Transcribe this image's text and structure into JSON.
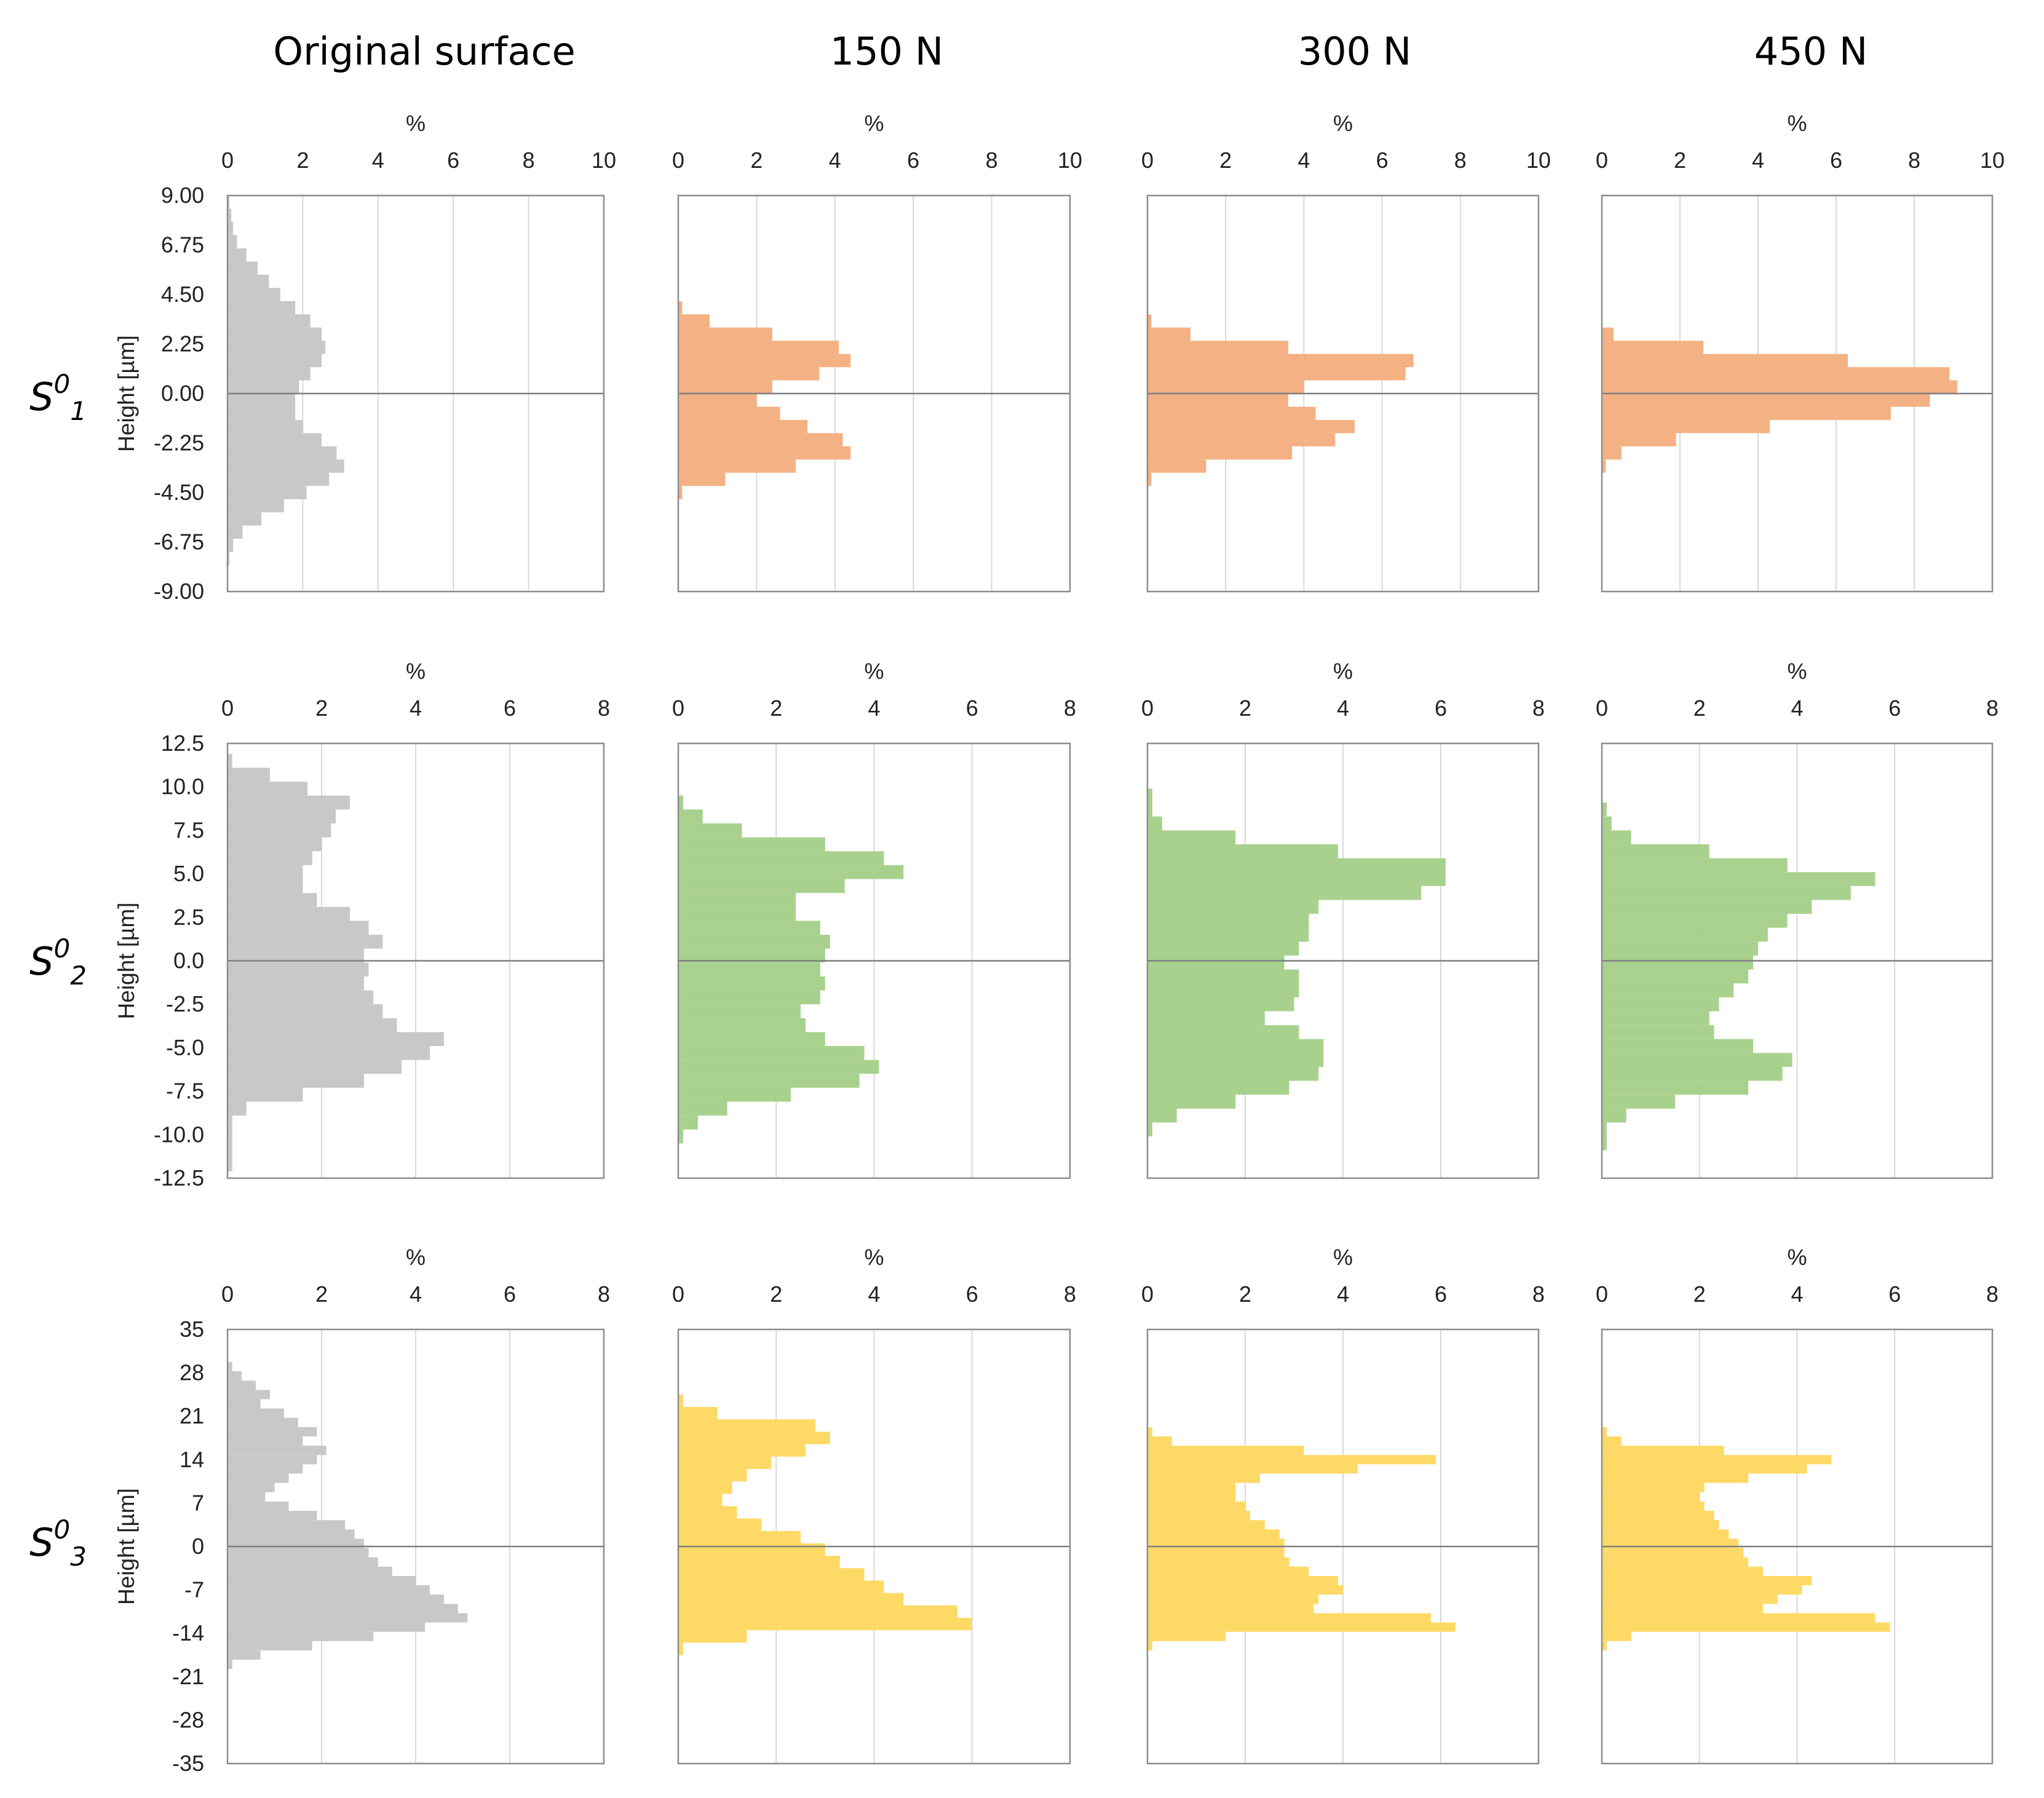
{
  "colors": {
    "original": "#c8c8c8",
    "row1": "#f4b183",
    "row2": "#a9d18e",
    "row3": "#ffd966",
    "frame": "#8c8c8c",
    "grid": "#d9d9d9",
    "zero_line": "#7f7f7f"
  },
  "column_titles": [
    "Original surface",
    "150 N",
    "300 N",
    "450 N"
  ],
  "row_labels": [
    {
      "base": "S",
      "sup": "0",
      "sub": "1"
    },
    {
      "base": "S",
      "sup": "0",
      "sub": "2"
    },
    {
      "base": "S",
      "sup": "0",
      "sub": "3"
    }
  ],
  "chart_data": [
    {
      "type": "bar",
      "orientation": "horizontal",
      "row": 0,
      "column": "Original surface",
      "xlabel": "%",
      "ylabel": "Height [µm]",
      "xlim": [
        0,
        10
      ],
      "ylim": [
        -9,
        9
      ],
      "x_ticks": [
        "0",
        "2",
        "4",
        "6",
        "8",
        "10"
      ],
      "y_ticks": [
        "9.00",
        "6.75",
        "4.50",
        "2.25",
        "0.00",
        "-2.25",
        "-4.50",
        "-6.75",
        "-9.00"
      ],
      "bins": [
        [
          8.7,
          0.05
        ],
        [
          8.1,
          0.1
        ],
        [
          7.5,
          0.15
        ],
        [
          6.9,
          0.25
        ],
        [
          6.3,
          0.5
        ],
        [
          5.7,
          0.8
        ],
        [
          5.1,
          1.1
        ],
        [
          4.5,
          1.4
        ],
        [
          3.9,
          1.8
        ],
        [
          3.3,
          2.2
        ],
        [
          2.7,
          2.5
        ],
        [
          2.1,
          2.6
        ],
        [
          1.5,
          2.5
        ],
        [
          0.9,
          2.2
        ],
        [
          0.3,
          1.9
        ],
        [
          -0.3,
          1.8
        ],
        [
          -0.9,
          1.8
        ],
        [
          -1.5,
          2.0
        ],
        [
          -2.1,
          2.5
        ],
        [
          -2.7,
          2.9
        ],
        [
          -3.3,
          3.1
        ],
        [
          -3.9,
          2.7
        ],
        [
          -4.5,
          2.1
        ],
        [
          -5.1,
          1.5
        ],
        [
          -5.7,
          0.9
        ],
        [
          -6.3,
          0.4
        ],
        [
          -6.9,
          0.15
        ],
        [
          -7.5,
          0.05
        ]
      ]
    },
    {
      "type": "bar",
      "orientation": "horizontal",
      "row": 0,
      "column": "150 N",
      "xlabel": "%",
      "ylabel": "Height [µm]",
      "xlim": [
        0,
        10
      ],
      "ylim": [
        -9,
        9
      ],
      "x_ticks": [
        "0",
        "2",
        "4",
        "6",
        "8",
        "10"
      ],
      "y_ticks": [],
      "bins": [
        [
          3.9,
          0.1
        ],
        [
          3.3,
          0.8
        ],
        [
          2.7,
          2.4
        ],
        [
          2.1,
          4.1
        ],
        [
          1.5,
          4.4
        ],
        [
          0.9,
          3.6
        ],
        [
          0.3,
          2.4
        ],
        [
          -0.3,
          2.0
        ],
        [
          -0.9,
          2.6
        ],
        [
          -1.5,
          3.3
        ],
        [
          -2.1,
          4.2
        ],
        [
          -2.7,
          4.4
        ],
        [
          -3.3,
          3.0
        ],
        [
          -3.9,
          1.2
        ],
        [
          -4.5,
          0.1
        ]
      ]
    },
    {
      "type": "bar",
      "orientation": "horizontal",
      "row": 0,
      "column": "300 N",
      "xlabel": "%",
      "ylabel": "Height [µm]",
      "xlim": [
        0,
        10
      ],
      "ylim": [
        -9,
        9
      ],
      "x_ticks": [
        "0",
        "2",
        "4",
        "6",
        "8",
        "10"
      ],
      "y_ticks": [],
      "bins": [
        [
          3.3,
          0.1
        ],
        [
          2.7,
          1.1
        ],
        [
          2.1,
          3.6
        ],
        [
          1.5,
          6.8
        ],
        [
          0.9,
          6.6
        ],
        [
          0.3,
          4.0
        ],
        [
          -0.3,
          3.6
        ],
        [
          -0.9,
          4.3
        ],
        [
          -1.5,
          5.3
        ],
        [
          -2.1,
          4.8
        ],
        [
          -2.7,
          3.7
        ],
        [
          -3.3,
          1.5
        ],
        [
          -3.9,
          0.1
        ]
      ]
    },
    {
      "type": "bar",
      "orientation": "horizontal",
      "row": 0,
      "column": "450 N",
      "xlabel": "%",
      "ylabel": "Height [µm]",
      "xlim": [
        0,
        10
      ],
      "ylim": [
        -9,
        9
      ],
      "x_ticks": [
        "0",
        "2",
        "4",
        "6",
        "8",
        "10"
      ],
      "y_ticks": [],
      "bins": [
        [
          2.7,
          0.3
        ],
        [
          2.1,
          2.6
        ],
        [
          1.5,
          6.3
        ],
        [
          0.9,
          8.9
        ],
        [
          0.3,
          9.1
        ],
        [
          -0.3,
          8.4
        ],
        [
          -0.9,
          7.4
        ],
        [
          -1.5,
          4.3
        ],
        [
          -2.1,
          1.9
        ],
        [
          -2.7,
          0.5
        ],
        [
          -3.3,
          0.1
        ]
      ]
    },
    {
      "type": "bar",
      "orientation": "horizontal",
      "row": 1,
      "column": "Original surface",
      "xlabel": "%",
      "ylabel": "Height [µm]",
      "xlim": [
        0,
        8
      ],
      "ylim": [
        -12.5,
        12.5
      ],
      "x_ticks": [
        "0",
        "2",
        "4",
        "6",
        "8"
      ],
      "y_ticks": [
        "12.5",
        "10.0",
        "7.5",
        "5.0",
        "2.5",
        "0.0",
        "-2.5",
        "-5.0",
        "-7.5",
        "-10.0",
        "-12.5"
      ],
      "bins": [
        [
          11.5,
          0.1
        ],
        [
          10.7,
          0.9
        ],
        [
          9.9,
          1.7
        ],
        [
          9.1,
          2.6
        ],
        [
          8.3,
          2.3
        ],
        [
          7.5,
          2.2
        ],
        [
          6.7,
          2.0
        ],
        [
          5.9,
          1.8
        ],
        [
          5.1,
          1.6
        ],
        [
          4.3,
          1.6
        ],
        [
          3.5,
          1.9
        ],
        [
          2.7,
          2.6
        ],
        [
          1.9,
          3.0
        ],
        [
          1.1,
          3.3
        ],
        [
          0.3,
          2.9
        ],
        [
          -0.5,
          3.0
        ],
        [
          -1.3,
          2.9
        ],
        [
          -2.1,
          3.1
        ],
        [
          -2.9,
          3.3
        ],
        [
          -3.7,
          3.6
        ],
        [
          -4.5,
          4.6
        ],
        [
          -5.3,
          4.3
        ],
        [
          -6.1,
          3.7
        ],
        [
          -6.9,
          2.9
        ],
        [
          -7.7,
          1.6
        ],
        [
          -8.5,
          0.4
        ],
        [
          -9.3,
          0.1
        ],
        [
          -10.1,
          0.1
        ],
        [
          -10.9,
          0.1
        ],
        [
          -11.7,
          0.1
        ]
      ]
    },
    {
      "type": "bar",
      "orientation": "horizontal",
      "row": 1,
      "column": "150 N",
      "xlabel": "%",
      "ylabel": "Height [µm]",
      "xlim": [
        0,
        8
      ],
      "ylim": [
        -12.5,
        12.5
      ],
      "x_ticks": [
        "0",
        "2",
        "4",
        "6",
        "8"
      ],
      "y_ticks": [],
      "bins": [
        [
          9.1,
          0.1
        ],
        [
          8.3,
          0.5
        ],
        [
          7.5,
          1.3
        ],
        [
          6.7,
          3.0
        ],
        [
          5.9,
          4.2
        ],
        [
          5.1,
          4.6
        ],
        [
          4.3,
          3.4
        ],
        [
          3.5,
          2.4
        ],
        [
          2.7,
          2.4
        ],
        [
          1.9,
          2.9
        ],
        [
          1.1,
          3.1
        ],
        [
          0.3,
          3.0
        ],
        [
          -0.5,
          2.9
        ],
        [
          -1.3,
          3.0
        ],
        [
          -2.1,
          2.9
        ],
        [
          -2.9,
          2.5
        ],
        [
          -3.7,
          2.6
        ],
        [
          -4.5,
          3.0
        ],
        [
          -5.3,
          3.8
        ],
        [
          -6.1,
          4.1
        ],
        [
          -6.9,
          3.7
        ],
        [
          -7.7,
          2.3
        ],
        [
          -8.5,
          1.0
        ],
        [
          -9.3,
          0.4
        ],
        [
          -10.1,
          0.1
        ]
      ]
    },
    {
      "type": "bar",
      "orientation": "horizontal",
      "row": 1,
      "column": "300 N",
      "xlabel": "%",
      "ylabel": "Height [µm]",
      "xlim": [
        0,
        8
      ],
      "ylim": [
        -12.5,
        12.5
      ],
      "x_ticks": [
        "0",
        "2",
        "4",
        "6",
        "8"
      ],
      "y_ticks": [],
      "bins": [
        [
          9.1,
          0.1
        ],
        [
          7.5,
          0.3
        ],
        [
          6.7,
          1.8
        ],
        [
          5.9,
          3.9
        ],
        [
          5.1,
          6.1
        ],
        [
          4.3,
          5.6
        ],
        [
          3.5,
          3.5
        ],
        [
          2.7,
          3.3
        ],
        [
          1.9,
          3.3
        ],
        [
          1.1,
          3.1
        ],
        [
          0.3,
          2.7
        ],
        [
          -0.5,
          2.8
        ],
        [
          -1.3,
          3.1
        ],
        [
          -2.1,
          3.0
        ],
        [
          -2.9,
          2.4
        ],
        [
          -3.7,
          2.3
        ],
        [
          -4.5,
          3.1
        ],
        [
          -5.3,
          3.6
        ],
        [
          -6.1,
          3.5
        ],
        [
          -6.9,
          2.9
        ],
        [
          -7.7,
          1.8
        ],
        [
          -8.5,
          0.6
        ],
        [
          -9.3,
          0.1
        ]
      ]
    },
    {
      "type": "bar",
      "orientation": "horizontal",
      "row": 1,
      "column": "450 N",
      "xlabel": "%",
      "ylabel": "Height [µm]",
      "xlim": [
        0,
        8
      ],
      "ylim": [
        -12.5,
        12.5
      ],
      "x_ticks": [
        "0",
        "2",
        "4",
        "6",
        "8"
      ],
      "y_ticks": [],
      "bins": [
        [
          8.7,
          0.1
        ],
        [
          7.9,
          0.2
        ],
        [
          7.1,
          0.6
        ],
        [
          6.3,
          2.2
        ],
        [
          5.5,
          3.8
        ],
        [
          4.7,
          5.6
        ],
        [
          3.9,
          5.1
        ],
        [
          3.1,
          4.3
        ],
        [
          2.3,
          3.8
        ],
        [
          1.5,
          3.4
        ],
        [
          0.7,
          3.2
        ],
        [
          -0.1,
          3.1
        ],
        [
          -0.9,
          3.0
        ],
        [
          -1.7,
          2.7
        ],
        [
          -2.5,
          2.4
        ],
        [
          -3.3,
          2.2
        ],
        [
          -4.1,
          2.3
        ],
        [
          -4.9,
          3.1
        ],
        [
          -5.7,
          3.9
        ],
        [
          -6.5,
          3.7
        ],
        [
          -7.3,
          3.0
        ],
        [
          -8.1,
          1.5
        ],
        [
          -8.9,
          0.5
        ],
        [
          -9.7,
          0.1
        ],
        [
          -10.5,
          0.1
        ]
      ]
    },
    {
      "type": "bar",
      "orientation": "horizontal",
      "row": 2,
      "column": "Original surface",
      "xlabel": "%",
      "ylabel": "Height [µm]",
      "xlim": [
        0,
        8
      ],
      "ylim": [
        -35,
        35
      ],
      "x_ticks": [
        "0",
        "2",
        "4",
        "6",
        "8"
      ],
      "y_ticks": [
        "35",
        "28",
        "21",
        "14",
        "7",
        "0",
        "-7",
        "-14",
        "-21",
        "-28",
        "-35"
      ],
      "bins": [
        [
          29.0,
          0.1
        ],
        [
          27.5,
          0.3
        ],
        [
          26.0,
          0.6
        ],
        [
          24.5,
          0.9
        ],
        [
          23.0,
          0.7
        ],
        [
          21.5,
          1.2
        ],
        [
          20.0,
          1.5
        ],
        [
          18.5,
          1.9
        ],
        [
          17.0,
          1.6
        ],
        [
          15.5,
          2.1
        ],
        [
          14.0,
          1.9
        ],
        [
          12.5,
          1.6
        ],
        [
          11.0,
          1.3
        ],
        [
          9.5,
          1.0
        ],
        [
          8.0,
          0.8
        ],
        [
          6.5,
          1.3
        ],
        [
          5.0,
          1.9
        ],
        [
          3.5,
          2.5
        ],
        [
          2.0,
          2.7
        ],
        [
          0.5,
          2.9
        ],
        [
          -1.0,
          3.0
        ],
        [
          -2.5,
          3.2
        ],
        [
          -4.0,
          3.5
        ],
        [
          -5.5,
          4.0
        ],
        [
          -7.0,
          4.3
        ],
        [
          -8.5,
          4.6
        ],
        [
          -10.0,
          4.9
        ],
        [
          -11.5,
          5.1
        ],
        [
          -13.0,
          4.2
        ],
        [
          -14.5,
          3.1
        ],
        [
          -16.0,
          1.8
        ],
        [
          -17.5,
          0.7
        ],
        [
          -19.0,
          0.1
        ]
      ]
    },
    {
      "type": "bar",
      "orientation": "horizontal",
      "row": 2,
      "column": "150 N",
      "xlabel": "%",
      "ylabel": "Height [µm]",
      "xlim": [
        0,
        8
      ],
      "ylim": [
        -35,
        35
      ],
      "x_ticks": [
        "0",
        "2",
        "4",
        "6",
        "8"
      ],
      "y_ticks": [],
      "bins": [
        [
          23.5,
          0.1
        ],
        [
          21.5,
          0.8
        ],
        [
          19.5,
          2.8
        ],
        [
          17.5,
          3.1
        ],
        [
          15.5,
          2.6
        ],
        [
          13.5,
          1.9
        ],
        [
          11.5,
          1.4
        ],
        [
          9.5,
          1.1
        ],
        [
          7.5,
          0.9
        ],
        [
          5.5,
          1.2
        ],
        [
          3.5,
          1.7
        ],
        [
          1.5,
          2.5
        ],
        [
          -0.5,
          3.0
        ],
        [
          -2.5,
          3.3
        ],
        [
          -4.5,
          3.8
        ],
        [
          -6.5,
          4.2
        ],
        [
          -8.5,
          4.6
        ],
        [
          -10.5,
          5.7
        ],
        [
          -12.5,
          6.0
        ],
        [
          -14.5,
          1.4
        ],
        [
          -16.5,
          0.1
        ]
      ]
    },
    {
      "type": "bar",
      "orientation": "horizontal",
      "row": 2,
      "column": "300 N",
      "xlabel": "%",
      "ylabel": "Height [µm]",
      "xlim": [
        0,
        8
      ],
      "ylim": [
        -35,
        35
      ],
      "x_ticks": [
        "0",
        "2",
        "4",
        "6",
        "8"
      ],
      "y_ticks": [],
      "bins": [
        [
          18.5,
          0.1
        ],
        [
          17.0,
          0.5
        ],
        [
          15.5,
          3.2
        ],
        [
          14.0,
          5.9
        ],
        [
          12.5,
          4.3
        ],
        [
          11.0,
          2.3
        ],
        [
          9.5,
          1.8
        ],
        [
          8.0,
          1.8
        ],
        [
          6.5,
          2.0
        ],
        [
          5.0,
          2.1
        ],
        [
          3.5,
          2.4
        ],
        [
          2.0,
          2.7
        ],
        [
          0.5,
          2.8
        ],
        [
          -1.0,
          2.8
        ],
        [
          -2.5,
          2.9
        ],
        [
          -4.0,
          3.3
        ],
        [
          -5.5,
          3.9
        ],
        [
          -7.0,
          4.0
        ],
        [
          -8.5,
          3.5
        ],
        [
          -10.0,
          3.4
        ],
        [
          -11.5,
          5.8
        ],
        [
          -13.0,
          6.3
        ],
        [
          -14.5,
          1.6
        ],
        [
          -16.0,
          0.1
        ]
      ]
    },
    {
      "type": "bar",
      "orientation": "horizontal",
      "row": 2,
      "column": "450 N",
      "xlabel": "%",
      "ylabel": "Height [µm]",
      "xlim": [
        0,
        8
      ],
      "ylim": [
        -35,
        35
      ],
      "x_ticks": [
        "0",
        "2",
        "4",
        "6",
        "8"
      ],
      "y_ticks": [],
      "bins": [
        [
          18.5,
          0.1
        ],
        [
          17.0,
          0.4
        ],
        [
          15.5,
          2.5
        ],
        [
          14.0,
          4.7
        ],
        [
          12.5,
          4.2
        ],
        [
          11.0,
          3.0
        ],
        [
          9.5,
          2.1
        ],
        [
          8.0,
          2.0
        ],
        [
          6.5,
          2.1
        ],
        [
          5.0,
          2.3
        ],
        [
          3.5,
          2.4
        ],
        [
          2.0,
          2.6
        ],
        [
          0.5,
          2.8
        ],
        [
          -1.0,
          2.9
        ],
        [
          -2.5,
          3.0
        ],
        [
          -4.0,
          3.3
        ],
        [
          -5.5,
          4.3
        ],
        [
          -7.0,
          4.1
        ],
        [
          -8.5,
          3.6
        ],
        [
          -10.0,
          3.3
        ],
        [
          -11.5,
          5.6
        ],
        [
          -13.0,
          5.9
        ],
        [
          -14.5,
          0.6
        ],
        [
          -16.0,
          0.1
        ]
      ]
    }
  ]
}
